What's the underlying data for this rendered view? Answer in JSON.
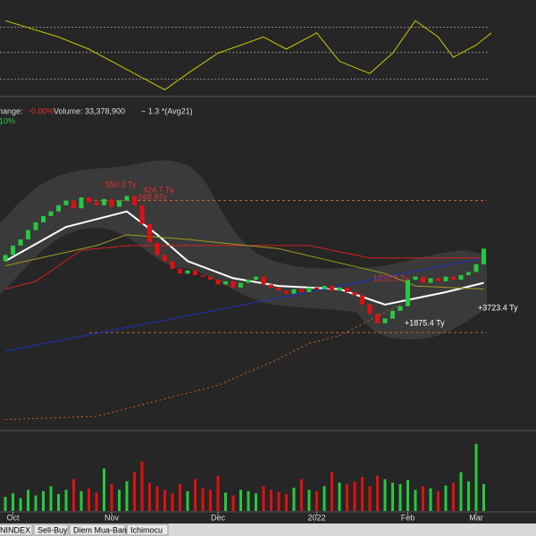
{
  "chart_data": [
    {
      "type": "line",
      "color": "#c8c800",
      "x": [
        0,
        7,
        11,
        17,
        21,
        24,
        28,
        34,
        37,
        40,
        41,
        44,
        48,
        51,
        54,
        57,
        59,
        62,
        64
      ],
      "values": [
        85,
        65,
        50,
        20,
        0,
        20,
        45,
        65,
        50,
        65,
        70,
        35,
        20,
        45,
        85,
        65,
        40,
        55,
        70
      ],
      "ylim": [
        -5,
        105
      ],
      "levels": [
        77,
        46,
        13
      ]
    },
    {
      "type": "candlestick",
      "info": {
        "change_label": "hange:",
        "change": "-0.00%",
        "volume": "Volume: 33,378,900",
        "avg": "~ 1.3 *(Avg21)",
        "pct": "10%"
      },
      "open": [
        1458,
        1462,
        1468,
        1472,
        1478,
        1483,
        1487,
        1490,
        1494,
        1497,
        1492,
        1499,
        1496,
        1494,
        1498,
        1493,
        1497,
        1500,
        1494,
        1482,
        1470,
        1462,
        1458,
        1453,
        1450,
        1452,
        1449,
        1448,
        1446,
        1443,
        1445,
        1441,
        1444,
        1446,
        1448,
        1443,
        1441,
        1439,
        1437,
        1440,
        1438,
        1441,
        1440,
        1442,
        1439,
        1441,
        1438,
        1436,
        1430,
        1424,
        1418,
        1421,
        1426,
        1429,
        1446,
        1448,
        1444,
        1447,
        1445,
        1448,
        1446,
        1449,
        1451,
        1456
      ],
      "close": [
        1462,
        1468,
        1472,
        1478,
        1483,
        1487,
        1490,
        1494,
        1497,
        1492,
        1499,
        1496,
        1494,
        1498,
        1493,
        1497,
        1500,
        1494,
        1482,
        1470,
        1462,
        1458,
        1453,
        1450,
        1452,
        1449,
        1448,
        1446,
        1443,
        1445,
        1441,
        1444,
        1446,
        1448,
        1443,
        1441,
        1439,
        1437,
        1440,
        1438,
        1441,
        1440,
        1442,
        1439,
        1441,
        1438,
        1436,
        1430,
        1424,
        1418,
        1421,
        1426,
        1429,
        1446,
        1448,
        1444,
        1447,
        1445,
        1448,
        1446,
        1449,
        1451,
        1456,
        1466
      ],
      "up_color": "#27c93f",
      "down_color": "#e01010",
      "ylim": [
        1350,
        1560
      ],
      "xticks": [
        {
          "value": 1,
          "label": "Oct"
        },
        {
          "value": 14,
          "label": "Nov"
        },
        {
          "value": 28,
          "label": "Dec"
        },
        {
          "value": 41,
          "label": "2022"
        },
        {
          "value": 53,
          "label": "Feb"
        },
        {
          "value": 62,
          "label": "Mar"
        }
      ],
      "overlays": [
        {
          "x": [
            0,
            8,
            16,
            20,
            24,
            30,
            36,
            44,
            50,
            54,
            58,
            63
          ],
          "values": [
            1458,
            1480,
            1490,
            1475,
            1458,
            1447,
            1442,
            1440,
            1430,
            1434,
            1438,
            1444
          ],
          "color": "#ffffff",
          "dashed": false
        },
        {
          "x": [
            0,
            4,
            10,
            16,
            40,
            48,
            63
          ],
          "values": [
            1440,
            1445,
            1465,
            1468,
            1468,
            1460,
            1460
          ],
          "color": "#d42020",
          "dashed": false
        },
        {
          "x": [
            0,
            63
          ],
          "values": [
            1400,
            1460
          ],
          "color": "#2030c0",
          "dashed": false
        },
        {
          "x": [
            0,
            12,
            16,
            24,
            36,
            50,
            54,
            63
          ],
          "values": [
            1455,
            1468,
            1475,
            1472,
            1466,
            1450,
            1442,
            1440
          ],
          "color": "#a09a20",
          "dashed": false
        },
        {
          "x": [
            0,
            12,
            20,
            28,
            36,
            40,
            44,
            48,
            52
          ],
          "values": [
            1356,
            1358,
            1368,
            1378,
            1395,
            1405,
            1410,
            1420,
            1430
          ],
          "color": "#c8602a",
          "dashed": true
        }
      ],
      "levels": [
        1497,
        1412
      ],
      "level_color": "#c8602a",
      "annotations": [
        "550.3 Ty",
        "424.7 Ty",
        "568.9Ty",
        "1232.9 Ty",
        "+1875.4 Ty",
        "+3723.4 Ty"
      ]
    },
    {
      "type": "bar",
      "values": [
        20,
        25,
        18,
        30,
        22,
        28,
        35,
        24,
        30,
        45,
        28,
        32,
        26,
        60,
        38,
        30,
        42,
        55,
        70,
        40,
        35,
        30,
        25,
        38,
        28,
        45,
        32,
        30,
        50,
        26,
        22,
        30,
        28,
        25,
        35,
        30,
        27,
        24,
        33,
        45,
        30,
        28,
        35,
        55,
        40,
        38,
        42,
        48,
        35,
        50,
        45,
        40,
        38,
        44,
        30,
        35,
        32,
        28,
        36,
        40,
        55,
        42,
        95,
        38
      ],
      "ylim": [
        0,
        110
      ]
    }
  ],
  "tabs": [
    "VNINDEX",
    "Sell-Buy",
    "Diem Mua-Ban",
    "Ichimocu"
  ]
}
